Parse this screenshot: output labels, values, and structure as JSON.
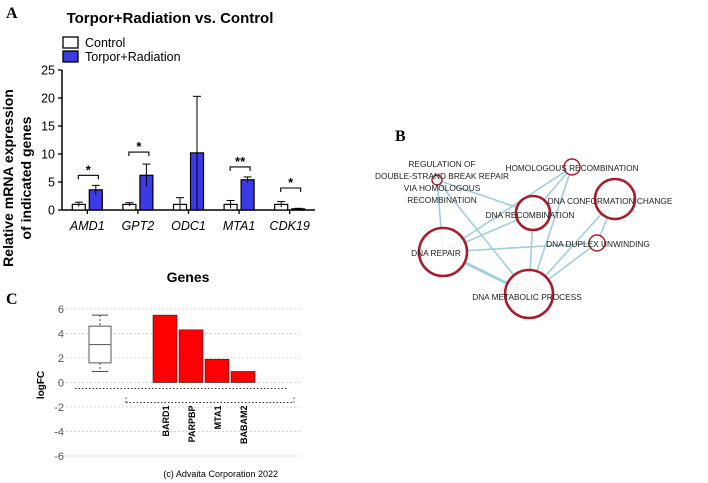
{
  "panel_labels": {
    "a": "A",
    "b": "B",
    "c": "C"
  },
  "chart_data": [
    {
      "type": "bar",
      "title": "Torpor+Radiation vs. Control",
      "xlabel": "Genes",
      "ylabel": "Relative mRNA expression of indicated genes",
      "ylabel_lines": [
        "Relative mRNA expression",
        "of indicated genes"
      ],
      "ylim": [
        0,
        25
      ],
      "yticks": [
        "0",
        "5",
        "10",
        "15",
        "20",
        "25"
      ],
      "categories": [
        "AMD1",
        "GPT2",
        "ODC1",
        "MTA1",
        "CDK19"
      ],
      "series": [
        {
          "name": "Control",
          "color": "#ffffff",
          "values": [
            1.0,
            1.0,
            1.0,
            1.0,
            1.0
          ],
          "errors": [
            0.4,
            0.3,
            1.2,
            0.7,
            0.5
          ]
        },
        {
          "name": "Torpor+Radiation",
          "color": "#3a3ae6",
          "values": [
            3.6,
            6.2,
            10.2,
            5.4,
            0.2
          ],
          "errors": [
            0.8,
            2.0,
            10.1,
            0.5,
            0.1
          ]
        }
      ],
      "significance": [
        "*",
        "*",
        "",
        "**",
        "*"
      ],
      "legend": "top-left"
    },
    {
      "type": "network",
      "nodes": [
        {
          "id": "homologous",
          "label": "HOMOLOGOUS RECOMBINATION",
          "size": 1
        },
        {
          "id": "regulation",
          "label": "REGULATION OF DOUBLE-STRAND BREAK REPAIR VIA HOMOLOGOUS RECOMBINATION",
          "lines": [
            "REGULATION OF",
            "DOUBLE-STRAND BREAK REPAIR",
            "VIA HOMOLOGOUS",
            "RECOMBINATION"
          ],
          "size": 1
        },
        {
          "id": "dna_recombination",
          "label": "DNA RECOMBINATION",
          "size": 3
        },
        {
          "id": "dna_conformation",
          "label": "DNA CONFORMATION CHANGE",
          "size": 3
        },
        {
          "id": "dna_duplex",
          "label": "DNA DUPLEX UNWINDING",
          "size": 1
        },
        {
          "id": "dna_repair",
          "label": "DNA REPAIR",
          "size": 4
        },
        {
          "id": "dna_metabolic",
          "label": "DNA METABOLIC PROCESS",
          "size": 4
        }
      ],
      "edges": [
        [
          "regulation",
          "dna_recombination"
        ],
        [
          "regulation",
          "dna_repair"
        ],
        [
          "regulation",
          "dna_metabolic"
        ],
        [
          "homologous",
          "dna_recombination"
        ],
        [
          "homologous",
          "dna_repair"
        ],
        [
          "homologous",
          "dna_metabolic"
        ],
        [
          "dna_recombination",
          "dna_repair"
        ],
        [
          "dna_recombination",
          "dna_metabolic"
        ],
        [
          "dna_repair",
          "dna_metabolic"
        ],
        [
          "dna_repair",
          "dna_duplex"
        ],
        [
          "dna_duplex",
          "dna_metabolic"
        ],
        [
          "dna_conformation",
          "dna_duplex"
        ],
        [
          "dna_conformation",
          "dna_metabolic"
        ]
      ]
    },
    {
      "type": "bar",
      "ylabel": "logFC",
      "ylim": [
        -6,
        6
      ],
      "yticks": [
        "6",
        "4",
        "2",
        "0",
        "-2",
        "-4",
        "-6"
      ],
      "categories": [
        "BARD1",
        "PARPBP",
        "MTA1",
        "BABAM2"
      ],
      "values": [
        5.5,
        4.3,
        1.9,
        0.9
      ],
      "bar_color": "#ff0000",
      "boxplot": {
        "min": 0.9,
        "q1": 1.6,
        "median": 3.1,
        "q3": 4.6,
        "max": 5.5
      },
      "footer": "(c) Advaita Corporation 2022"
    }
  ]
}
